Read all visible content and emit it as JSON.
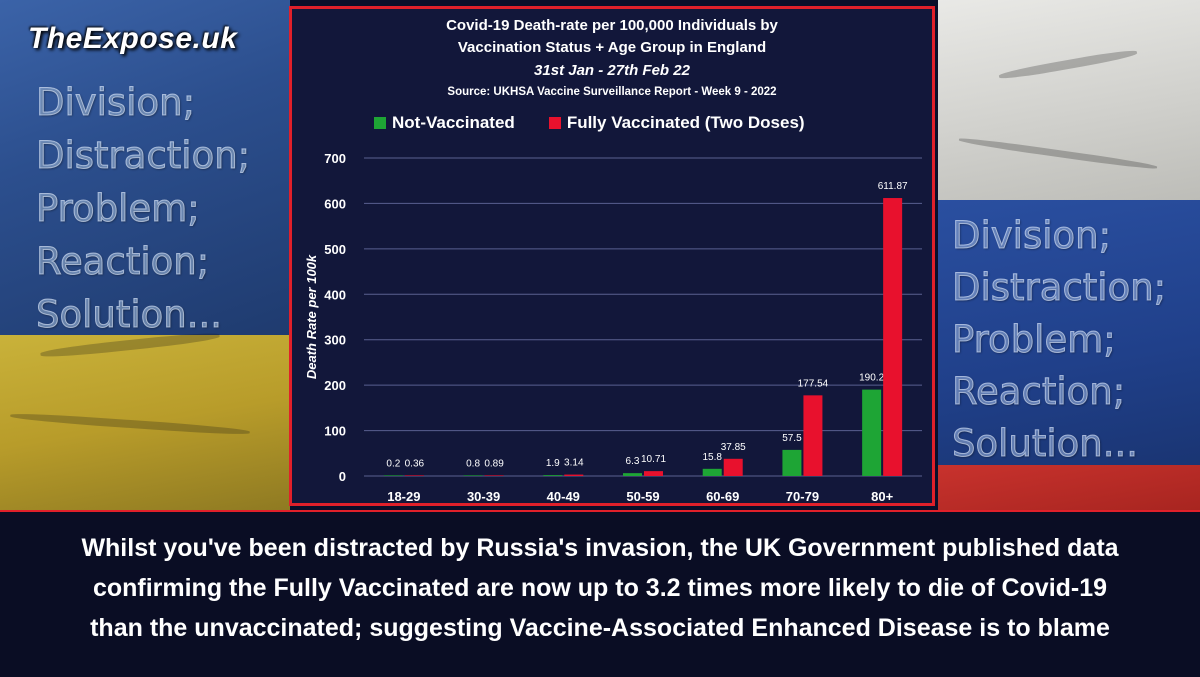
{
  "brand": "TheExpose.uk",
  "slogan_left": [
    "Division;",
    "Distraction;",
    "Problem;",
    "Reaction;",
    "Solution..."
  ],
  "slogan_right": [
    "Division;",
    "Distraction;",
    "Problem;",
    "Reaction;",
    "Solution..."
  ],
  "caption": {
    "line1": "Whilst you've been distracted by Russia's invasion, the UK Government published data",
    "line2": "confirming the Fully Vaccinated are now up to 3.2 times more likely to die of Covid-19",
    "line3": "than the unvaccinated; suggesting Vaccine-Associated Enhanced Disease is to blame"
  },
  "colors": {
    "not_vaccinated": "#1ea535",
    "fully_vaccinated": "#e8112d",
    "frame_border": "#e0202a",
    "chart_bg": "#12173a"
  },
  "chart_data": {
    "type": "bar",
    "title_line1": "Covid-19 Death-rate per 100,000 Individuals by",
    "title_line2": "Vaccination Status + Age Group in England",
    "date_range": "31st Jan - 27th Feb 22",
    "source": "Source: UKHSA Vaccine Surveillance Report - Week 9 - 2022",
    "ylabel": "Death Rate per 100k",
    "xlabel": "",
    "ylim": [
      0,
      700
    ],
    "yticks": [
      "0",
      "100",
      "200",
      "300",
      "400",
      "500",
      "600",
      "700"
    ],
    "grid": true,
    "legend_position": "top",
    "categories": [
      "18-29",
      "30-39",
      "40-49",
      "50-59",
      "60-69",
      "70-79",
      "80+"
    ],
    "series": [
      {
        "name": "Not-Vaccinated",
        "values": [
          0.2,
          0.8,
          1.9,
          6.3,
          15.8,
          57.5,
          190.2
        ],
        "labels": [
          "0.2",
          "0.8",
          "1.9",
          "6.3",
          "15.8",
          "57.5",
          "190.2"
        ]
      },
      {
        "name": "Fully Vaccinated (Two Doses)",
        "values": [
          0.36,
          0.89,
          3.14,
          10.71,
          37.85,
          177.54,
          611.87
        ],
        "labels": [
          "0.36",
          "0.89",
          "3.14",
          "10.71",
          "37.85",
          "177.54",
          "611.87"
        ]
      }
    ]
  }
}
